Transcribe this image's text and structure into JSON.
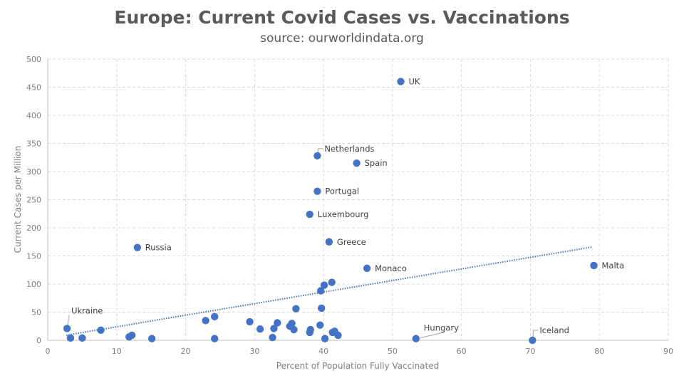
{
  "chart_data": {
    "type": "scatter",
    "title": "Europe: Current Covid Cases vs. Vaccinations",
    "subtitle": "source: ourworldindata.org",
    "xlabel": "Percent of Population Fully Vaccinated",
    "ylabel": "Current Cases per Million",
    "xlim": [
      0,
      90
    ],
    "ylim": [
      0,
      500
    ],
    "xticks": [
      "0",
      "10",
      "20",
      "30",
      "40",
      "50",
      "60",
      "70",
      "80",
      "90"
    ],
    "yticks": [
      "0",
      "50",
      "100",
      "150",
      "200",
      "250",
      "300",
      "350",
      "400",
      "450",
      "500"
    ],
    "grid": "dashed",
    "marker_color": "#4472c4",
    "trendline": {
      "style": "dotted",
      "color": "#4472c4",
      "from": [
        2.7,
        9
      ],
      "to": [
        79,
        166
      ]
    },
    "points": [
      {
        "x": 51.2,
        "y": 460,
        "label": "UK"
      },
      {
        "x": 39.1,
        "y": 328,
        "label": "Netherlands"
      },
      {
        "x": 44.8,
        "y": 315,
        "label": "Spain"
      },
      {
        "x": 39.1,
        "y": 265,
        "label": "Portugal"
      },
      {
        "x": 38.0,
        "y": 224,
        "label": "Luxembourg"
      },
      {
        "x": 40.8,
        "y": 175,
        "label": "Greece"
      },
      {
        "x": 13.0,
        "y": 165,
        "label": "Russia"
      },
      {
        "x": 46.3,
        "y": 128,
        "label": "Monaco"
      },
      {
        "x": 79.2,
        "y": 133,
        "label": "Malta"
      },
      {
        "x": 2.8,
        "y": 21,
        "label": "Ukraine"
      },
      {
        "x": 53.4,
        "y": 3,
        "label": "Hungary"
      },
      {
        "x": 70.3,
        "y": 0,
        "label": "Iceland"
      },
      {
        "x": 3.3,
        "y": 4
      },
      {
        "x": 5.0,
        "y": 4
      },
      {
        "x": 7.7,
        "y": 18
      },
      {
        "x": 11.8,
        "y": 6
      },
      {
        "x": 12.2,
        "y": 9
      },
      {
        "x": 15.1,
        "y": 3
      },
      {
        "x": 22.9,
        "y": 35
      },
      {
        "x": 24.2,
        "y": 42
      },
      {
        "x": 24.2,
        "y": 3
      },
      {
        "x": 29.3,
        "y": 33
      },
      {
        "x": 30.8,
        "y": 20
      },
      {
        "x": 32.6,
        "y": 5
      },
      {
        "x": 32.8,
        "y": 21
      },
      {
        "x": 33.3,
        "y": 31
      },
      {
        "x": 35.1,
        "y": 25
      },
      {
        "x": 35.4,
        "y": 30
      },
      {
        "x": 35.7,
        "y": 19
      },
      {
        "x": 36.0,
        "y": 56
      },
      {
        "x": 38.0,
        "y": 14
      },
      {
        "x": 38.1,
        "y": 19
      },
      {
        "x": 39.5,
        "y": 27
      },
      {
        "x": 39.6,
        "y": 88
      },
      {
        "x": 39.7,
        "y": 57
      },
      {
        "x": 40.1,
        "y": 98
      },
      {
        "x": 40.2,
        "y": 3
      },
      {
        "x": 41.2,
        "y": 103
      },
      {
        "x": 41.3,
        "y": 14
      },
      {
        "x": 41.6,
        "y": 16
      },
      {
        "x": 42.1,
        "y": 9
      }
    ]
  }
}
